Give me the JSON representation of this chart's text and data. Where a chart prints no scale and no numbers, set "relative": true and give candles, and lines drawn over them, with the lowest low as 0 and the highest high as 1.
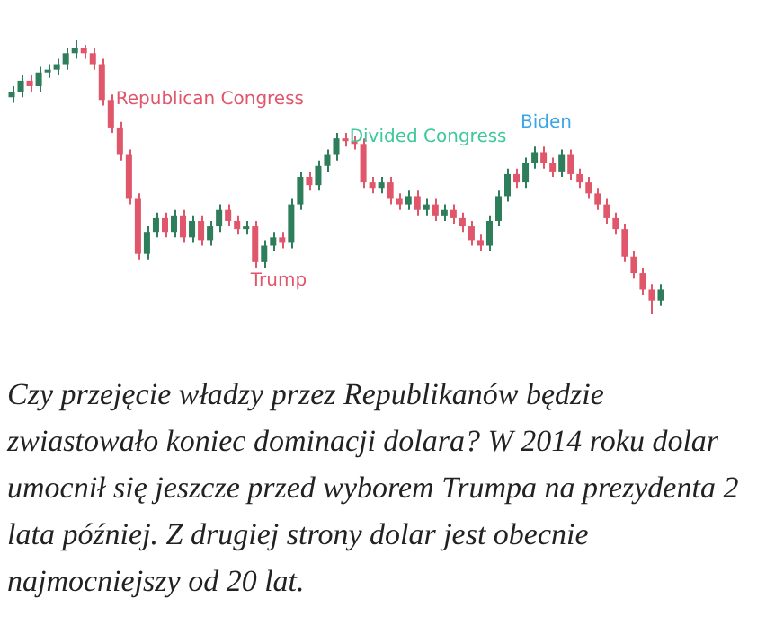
{
  "chart_data": {
    "type": "candlestick",
    "relative": true,
    "categories": [
      null,
      null,
      null,
      null,
      null,
      null,
      null,
      null,
      null,
      null,
      null,
      null,
      null,
      null,
      null,
      null,
      null,
      null,
      null,
      null,
      null,
      null,
      null,
      null,
      null,
      null,
      null,
      null,
      null,
      null,
      null,
      null,
      null,
      null,
      null,
      null,
      null,
      null,
      null,
      null,
      null,
      null,
      null,
      null,
      null,
      null,
      null,
      null,
      null,
      null,
      null,
      null,
      null,
      null,
      null,
      null,
      null,
      null,
      null,
      null,
      null,
      null,
      null,
      null,
      null,
      null,
      null,
      null,
      null,
      null,
      null,
      null,
      null
    ],
    "ohlc": [
      [
        0.79,
        0.83,
        0.77,
        0.81
      ],
      [
        0.81,
        0.87,
        0.79,
        0.85
      ],
      [
        0.85,
        0.87,
        0.81,
        0.83
      ],
      [
        0.83,
        0.9,
        0.81,
        0.88
      ],
      [
        0.88,
        0.91,
        0.86,
        0.89
      ],
      [
        0.89,
        0.93,
        0.87,
        0.91
      ],
      [
        0.91,
        0.97,
        0.89,
        0.95
      ],
      [
        0.95,
        1,
        0.93,
        0.97
      ],
      [
        0.97,
        0.98,
        0.93,
        0.95
      ],
      [
        0.95,
        0.97,
        0.89,
        0.91
      ],
      [
        0.91,
        0.93,
        0.76,
        0.78
      ],
      [
        0.78,
        0.8,
        0.66,
        0.68
      ],
      [
        0.68,
        0.7,
        0.56,
        0.58
      ],
      [
        0.58,
        0.6,
        0.4,
        0.42
      ],
      [
        0.42,
        0.44,
        0.2,
        0.22
      ],
      [
        0.22,
        0.32,
        0.2,
        0.3
      ],
      [
        0.3,
        0.37,
        0.28,
        0.35
      ],
      [
        0.35,
        0.37,
        0.28,
        0.3
      ],
      [
        0.3,
        0.38,
        0.28,
        0.36
      ],
      [
        0.36,
        0.38,
        0.26,
        0.28
      ],
      [
        0.28,
        0.36,
        0.26,
        0.34
      ],
      [
        0.34,
        0.36,
        0.25,
        0.27
      ],
      [
        0.27,
        0.34,
        0.25,
        0.32
      ],
      [
        0.32,
        0.4,
        0.3,
        0.38
      ],
      [
        0.38,
        0.4,
        0.32,
        0.34
      ],
      [
        0.34,
        0.36,
        0.29,
        0.31
      ],
      [
        0.31,
        0.34,
        0.29,
        0.32
      ],
      [
        0.32,
        0.34,
        0.17,
        0.19
      ],
      [
        0.19,
        0.27,
        0.17,
        0.25
      ],
      [
        0.25,
        0.3,
        0.23,
        0.28
      ],
      [
        0.28,
        0.3,
        0.24,
        0.26
      ],
      [
        0.26,
        0.42,
        0.24,
        0.4
      ],
      [
        0.4,
        0.52,
        0.38,
        0.5
      ],
      [
        0.5,
        0.52,
        0.45,
        0.47
      ],
      [
        0.47,
        0.56,
        0.45,
        0.54
      ],
      [
        0.54,
        0.6,
        0.52,
        0.58
      ],
      [
        0.58,
        0.66,
        0.56,
        0.64
      ],
      [
        0.64,
        0.66,
        0.61,
        0.63
      ],
      [
        0.63,
        0.65,
        0.6,
        0.62
      ],
      [
        0.62,
        0.64,
        0.46,
        0.48
      ],
      [
        0.48,
        0.5,
        0.44,
        0.46
      ],
      [
        0.46,
        0.5,
        0.44,
        0.48
      ],
      [
        0.48,
        0.5,
        0.4,
        0.42
      ],
      [
        0.42,
        0.44,
        0.38,
        0.4
      ],
      [
        0.4,
        0.45,
        0.38,
        0.43
      ],
      [
        0.43,
        0.45,
        0.36,
        0.38
      ],
      [
        0.38,
        0.42,
        0.36,
        0.4
      ],
      [
        0.4,
        0.42,
        0.34,
        0.36
      ],
      [
        0.36,
        0.4,
        0.34,
        0.38
      ],
      [
        0.38,
        0.4,
        0.33,
        0.35
      ],
      [
        0.35,
        0.37,
        0.3,
        0.32
      ],
      [
        0.32,
        0.34,
        0.25,
        0.27
      ],
      [
        0.27,
        0.29,
        0.23,
        0.25
      ],
      [
        0.25,
        0.36,
        0.23,
        0.34
      ],
      [
        0.34,
        0.45,
        0.32,
        0.43
      ],
      [
        0.43,
        0.53,
        0.41,
        0.51
      ],
      [
        0.51,
        0.53,
        0.46,
        0.48
      ],
      [
        0.48,
        0.57,
        0.46,
        0.55
      ],
      [
        0.55,
        0.61,
        0.53,
        0.59
      ],
      [
        0.59,
        0.61,
        0.53,
        0.55
      ],
      [
        0.55,
        0.57,
        0.5,
        0.52
      ],
      [
        0.52,
        0.6,
        0.5,
        0.58
      ],
      [
        0.58,
        0.6,
        0.49,
        0.51
      ],
      [
        0.51,
        0.53,
        0.46,
        0.48
      ],
      [
        0.48,
        0.5,
        0.42,
        0.44
      ],
      [
        0.44,
        0.46,
        0.38,
        0.4
      ],
      [
        0.4,
        0.42,
        0.33,
        0.35
      ],
      [
        0.35,
        0.37,
        0.29,
        0.31
      ],
      [
        0.31,
        0.33,
        0.19,
        0.21
      ],
      [
        0.21,
        0.23,
        0.13,
        0.15
      ],
      [
        0.15,
        0.17,
        0.07,
        0.09
      ],
      [
        0.09,
        0.11,
        0,
        0.05
      ],
      [
        0.05,
        0.11,
        0.03,
        0.09
      ]
    ],
    "annotations": [
      "Republican Congress",
      "Trump",
      "Divided Congress",
      "Biden",
      "Czy przejęcie władzy przez Republikanów będzie zwiastowało koniec dominacji dolara? W 2014 roku dolar umocnił się jeszcze przed wyborem Trumpa na prezydenta 2 lata później. Z drugiej strony dolar jest obecnie najmocniejszy od 20 lat."
    ]
  }
}
